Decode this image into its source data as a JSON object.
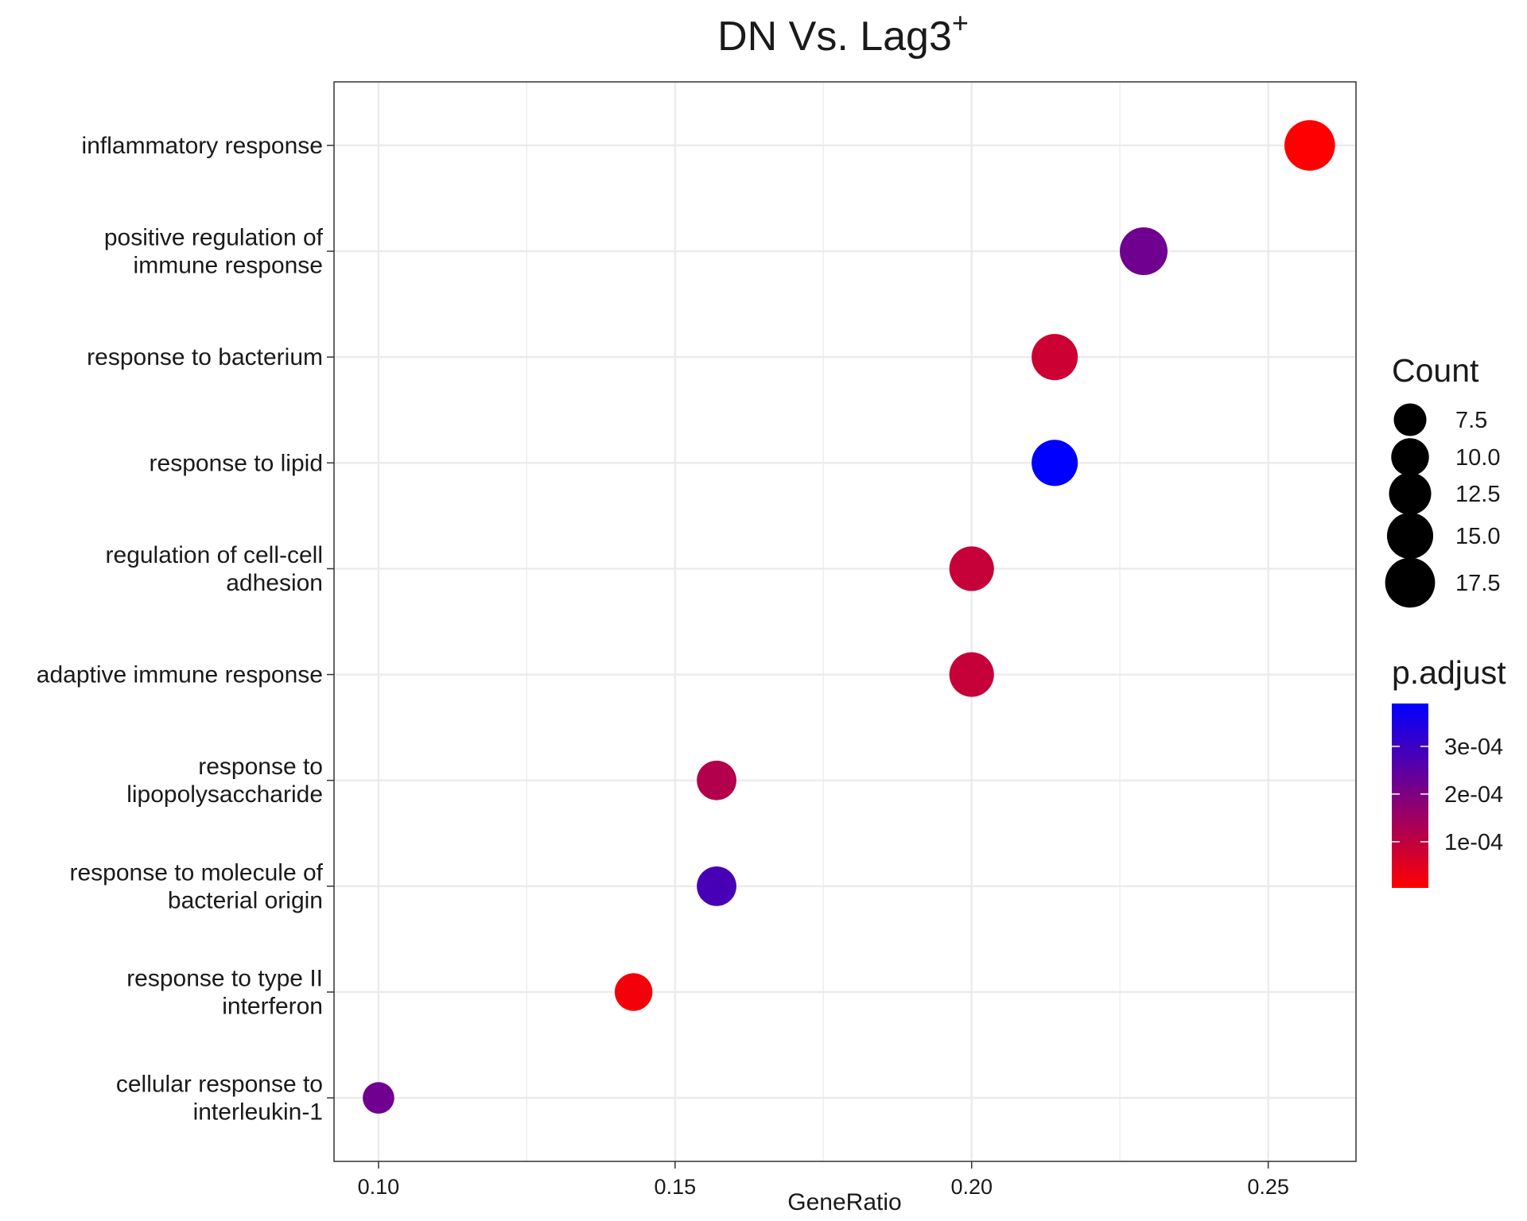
{
  "chart_data": {
    "type": "scatter",
    "title": "DN Vs. Lag3",
    "title_superscript": "+",
    "xlabel": "GeneRatio",
    "ylabel": "",
    "xlim": [
      0.0925,
      0.2648
    ],
    "xticks": [
      0.1,
      0.15,
      0.2,
      0.25
    ],
    "xtick_labels": [
      "0.10",
      "0.15",
      "0.20",
      "0.25"
    ],
    "grid": true,
    "categories": [
      "inflammatory response",
      "positive regulation of\nimmune response",
      "response to bacterium",
      "response to lipid",
      "regulation of cell-cell\nadhesion",
      "adaptive immune response",
      "response to\nlipopolysaccharide",
      "response to molecule of\nbacterial origin",
      "response to type II\ninterferon",
      "cellular response to\ninterleukin-1"
    ],
    "points": [
      {
        "term": "inflammatory response",
        "gene_ratio": 0.257,
        "count": 18,
        "p_adjust": 5e-06
      },
      {
        "term": "positive regulation of immune response",
        "gene_ratio": 0.229,
        "count": 16,
        "p_adjust": 0.00022
      },
      {
        "term": "response to bacterium",
        "gene_ratio": 0.214,
        "count": 15,
        "p_adjust": 8e-05
      },
      {
        "term": "response to lipid",
        "gene_ratio": 0.214,
        "count": 15,
        "p_adjust": 0.00039
      },
      {
        "term": "regulation of cell-cell adhesion",
        "gene_ratio": 0.2,
        "count": 14,
        "p_adjust": 9e-05
      },
      {
        "term": "adaptive immune response",
        "gene_ratio": 0.2,
        "count": 14,
        "p_adjust": 9e-05
      },
      {
        "term": "response to lipopolysaccharide",
        "gene_ratio": 0.157,
        "count": 11,
        "p_adjust": 0.00012
      },
      {
        "term": "response to molecule of bacterial origin",
        "gene_ratio": 0.157,
        "count": 11,
        "p_adjust": 0.00028
      },
      {
        "term": "response to type II interferon",
        "gene_ratio": 0.143,
        "count": 10,
        "p_adjust": 2e-05
      },
      {
        "term": "cellular response to interleukin-1",
        "gene_ratio": 0.1,
        "count": 7,
        "p_adjust": 0.00022
      }
    ],
    "size_legend": {
      "title": "Count",
      "values": [
        7.5,
        10.0,
        12.5,
        15.0,
        17.5
      ],
      "labels": [
        "7.5",
        "10.0",
        "12.5",
        "15.0",
        "17.5"
      ]
    },
    "color_legend": {
      "title": "p.adjust",
      "range": [
        3e-06,
        0.00039
      ],
      "breaks": [
        0.0003,
        0.0002,
        0.0001
      ],
      "labels": [
        "3e-04",
        "2e-04",
        "1e-04"
      ],
      "low_color": "#ff0000",
      "high_color": "#0000ff"
    },
    "colors": {
      "grid": "#ebebeb",
      "panel_border": "#333333",
      "text": "#1a1a1a",
      "point_legend": "#000000"
    }
  }
}
